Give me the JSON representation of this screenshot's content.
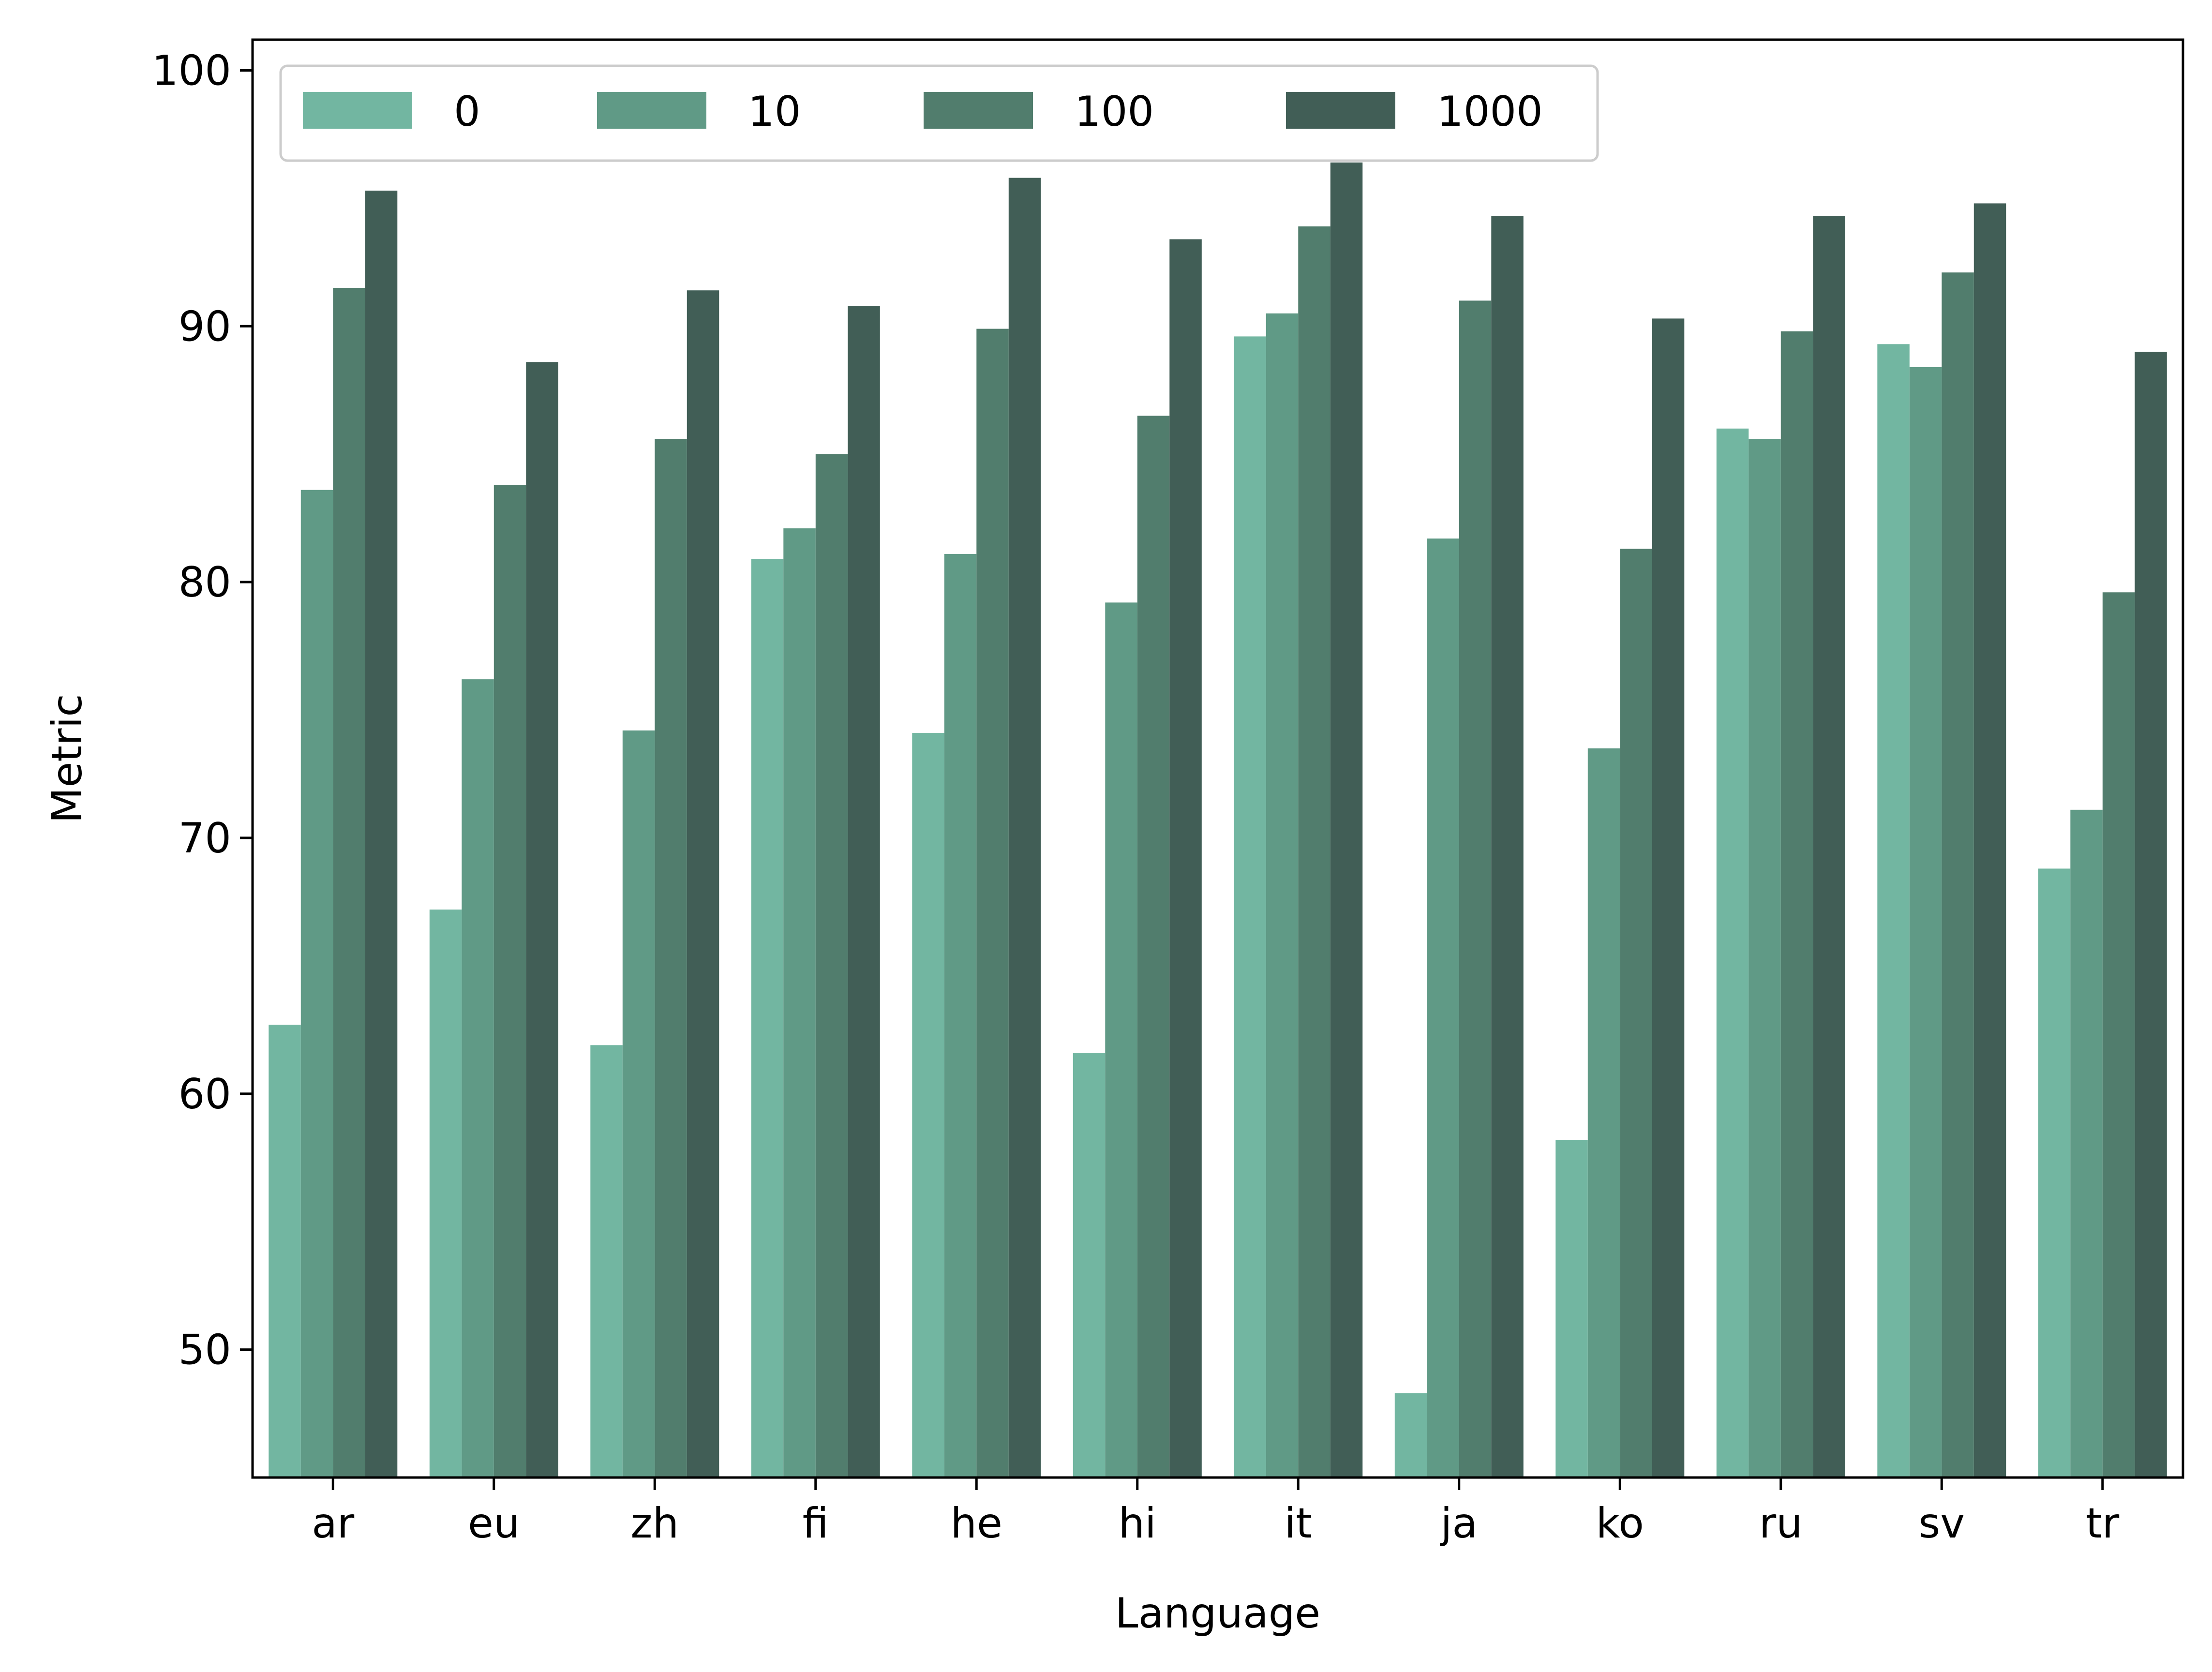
{
  "chart_data": {
    "type": "bar",
    "title": "",
    "xlabel": "Language",
    "ylabel": "Metric",
    "ylim": [
      45,
      101.2
    ],
    "yticks": [
      50,
      60,
      70,
      80,
      90,
      100
    ],
    "grid": false,
    "legend_position": "top-left",
    "legend_columns": 4,
    "categories": [
      "ar",
      "eu",
      "zh",
      "fi",
      "he",
      "hi",
      "it",
      "ja",
      "ko",
      "ru",
      "sv",
      "tr"
    ],
    "series": [
      {
        "name": "0",
        "color": "#72b6a1",
        "values": [
          62.7,
          67.2,
          61.9,
          80.9,
          74.1,
          61.6,
          89.6,
          48.3,
          58.2,
          86.0,
          89.3,
          68.8
        ]
      },
      {
        "name": "10",
        "color": "#609a86",
        "values": [
          83.6,
          76.2,
          74.2,
          82.1,
          81.1,
          79.2,
          90.5,
          81.7,
          73.5,
          85.6,
          88.4,
          71.1
        ]
      },
      {
        "name": "100",
        "color": "#517d6d",
        "values": [
          91.5,
          83.8,
          85.6,
          85.0,
          89.9,
          86.5,
          93.9,
          91.0,
          81.3,
          89.8,
          92.1,
          79.6
        ]
      },
      {
        "name": "1000",
        "color": "#415e56",
        "values": [
          95.3,
          88.6,
          91.4,
          90.8,
          95.8,
          93.4,
          96.4,
          94.3,
          90.3,
          94.3,
          94.8,
          89.0
        ]
      }
    ]
  }
}
